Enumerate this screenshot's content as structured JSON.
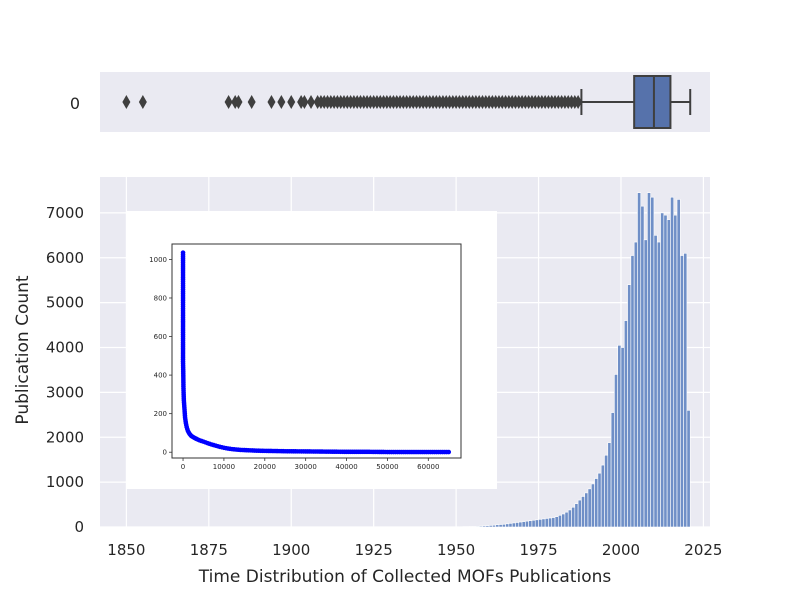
{
  "chart_data": [
    {
      "type": "box",
      "ytick_label": "0",
      "box": {
        "whisker_low": 1988,
        "q1": 2004,
        "median": 2010,
        "q3": 2015,
        "whisker_high": 2021
      },
      "outliers": [
        1850,
        1855,
        1881,
        1883,
        1884,
        1888,
        1894,
        1897,
        1900,
        1903,
        1904,
        1906,
        1908,
        1909,
        1910,
        1911,
        1912,
        1913,
        1914,
        1915,
        1916,
        1917,
        1918,
        1919,
        1920,
        1921,
        1922,
        1923,
        1924,
        1925,
        1926,
        1927,
        1928,
        1929,
        1930,
        1931,
        1932,
        1933,
        1934,
        1935,
        1936,
        1937,
        1938,
        1939,
        1940,
        1941,
        1942,
        1943,
        1944,
        1945,
        1946,
        1947,
        1948,
        1949,
        1950,
        1951,
        1952,
        1953,
        1954,
        1955,
        1956,
        1957,
        1958,
        1959,
        1960,
        1961,
        1962,
        1963,
        1964,
        1965,
        1966,
        1967,
        1968,
        1969,
        1970,
        1971,
        1972,
        1973,
        1974,
        1975,
        1976,
        1977,
        1978,
        1979,
        1980,
        1981,
        1982,
        1983,
        1984,
        1985,
        1986,
        1987
      ],
      "xlim": [
        1842,
        2027
      ],
      "colors": {
        "box": "#5672ab",
        "bg": "#eaeaf2",
        "line": "#3f3f3f"
      }
    },
    {
      "type": "bar",
      "xlabel": "Time Distribution of Collected MOFs Publications",
      "ylabel": "Publication Count",
      "xlim": [
        1842,
        2027
      ],
      "ylim": [
        0,
        7800
      ],
      "xticks": [
        1850,
        1875,
        1900,
        1925,
        1950,
        1975,
        2000,
        2025
      ],
      "yticks": [
        0,
        1000,
        2000,
        3000,
        4000,
        5000,
        6000,
        7000
      ],
      "bin_width": 1.0,
      "bins": [
        {
          "x": 1950,
          "value": 5
        },
        {
          "x": 1951,
          "value": 5
        },
        {
          "x": 1952,
          "value": 8
        },
        {
          "x": 1953,
          "value": 8
        },
        {
          "x": 1954,
          "value": 10
        },
        {
          "x": 1955,
          "value": 12
        },
        {
          "x": 1956,
          "value": 15
        },
        {
          "x": 1957,
          "value": 20
        },
        {
          "x": 1958,
          "value": 25
        },
        {
          "x": 1959,
          "value": 30
        },
        {
          "x": 1960,
          "value": 35
        },
        {
          "x": 1961,
          "value": 40
        },
        {
          "x": 1962,
          "value": 50
        },
        {
          "x": 1963,
          "value": 55
        },
        {
          "x": 1964,
          "value": 60
        },
        {
          "x": 1965,
          "value": 70
        },
        {
          "x": 1966,
          "value": 80
        },
        {
          "x": 1967,
          "value": 90
        },
        {
          "x": 1968,
          "value": 100
        },
        {
          "x": 1969,
          "value": 110
        },
        {
          "x": 1970,
          "value": 120
        },
        {
          "x": 1971,
          "value": 130
        },
        {
          "x": 1972,
          "value": 140
        },
        {
          "x": 1973,
          "value": 150
        },
        {
          "x": 1974,
          "value": 160
        },
        {
          "x": 1975,
          "value": 170
        },
        {
          "x": 1976,
          "value": 180
        },
        {
          "x": 1977,
          "value": 190
        },
        {
          "x": 1978,
          "value": 200
        },
        {
          "x": 1979,
          "value": 210
        },
        {
          "x": 1980,
          "value": 230
        },
        {
          "x": 1981,
          "value": 260
        },
        {
          "x": 1982,
          "value": 290
        },
        {
          "x": 1983,
          "value": 330
        },
        {
          "x": 1984,
          "value": 380
        },
        {
          "x": 1985,
          "value": 440
        },
        {
          "x": 1986,
          "value": 520
        },
        {
          "x": 1987,
          "value": 600
        },
        {
          "x": 1988,
          "value": 680
        },
        {
          "x": 1989,
          "value": 760
        },
        {
          "x": 1990,
          "value": 850
        },
        {
          "x": 1991,
          "value": 960
        },
        {
          "x": 1992,
          "value": 1080
        },
        {
          "x": 1993,
          "value": 1200
        },
        {
          "x": 1994,
          "value": 1380
        },
        {
          "x": 1995,
          "value": 1600
        },
        {
          "x": 1996,
          "value": 1880
        },
        {
          "x": 1997,
          "value": 2550
        },
        {
          "x": 1998,
          "value": 3400
        },
        {
          "x": 1999,
          "value": 4050
        },
        {
          "x": 2000,
          "value": 4000
        },
        {
          "x": 2001,
          "value": 4600
        },
        {
          "x": 2002,
          "value": 5400
        },
        {
          "x": 2003,
          "value": 6050
        },
        {
          "x": 2004,
          "value": 6350
        },
        {
          "x": 2005,
          "value": 7450
        },
        {
          "x": 2006,
          "value": 7150
        },
        {
          "x": 2007,
          "value": 6400
        },
        {
          "x": 2008,
          "value": 7450
        },
        {
          "x": 2009,
          "value": 7350
        },
        {
          "x": 2010,
          "value": 6500
        },
        {
          "x": 2011,
          "value": 6350
        },
        {
          "x": 2012,
          "value": 7000
        },
        {
          "x": 2013,
          "value": 6950
        },
        {
          "x": 2014,
          "value": 6850
        },
        {
          "x": 2015,
          "value": 7350
        },
        {
          "x": 2016,
          "value": 6950
        },
        {
          "x": 2017,
          "value": 7300
        },
        {
          "x": 2018,
          "value": 6050
        },
        {
          "x": 2019,
          "value": 6100
        },
        {
          "x": 2020,
          "value": 2600
        }
      ],
      "colors": {
        "bar": "#6f8fc7",
        "bar_edge": "#ffffff",
        "bg": "#eaeaf2",
        "grid": "#ffffff"
      }
    },
    {
      "type": "line",
      "series_marker": "circle",
      "xlim": [
        -2700,
        68000
      ],
      "ylim": [
        -30,
        1080
      ],
      "xticks": [
        0,
        10000,
        20000,
        30000,
        40000,
        50000,
        60000
      ],
      "yticks": [
        0,
        200,
        400,
        600,
        800,
        1000
      ],
      "points": [
        [
          0,
          1035
        ],
        [
          0,
          930
        ],
        [
          0,
          800
        ],
        [
          0,
          700
        ],
        [
          0,
          680
        ],
        [
          0,
          600
        ],
        [
          0,
          580
        ],
        [
          0,
          550
        ],
        [
          0,
          520
        ],
        [
          0,
          500
        ],
        [
          0,
          470
        ],
        [
          50,
          420
        ],
        [
          80,
          380
        ],
        [
          100,
          340
        ],
        [
          150,
          300
        ],
        [
          200,
          270
        ],
        [
          300,
          240
        ],
        [
          400,
          210
        ],
        [
          500,
          180
        ],
        [
          700,
          150
        ],
        [
          900,
          130
        ],
        [
          1200,
          110
        ],
        [
          1600,
          95
        ],
        [
          2000,
          85
        ],
        [
          2500,
          78
        ],
        [
          3000,
          72
        ],
        [
          4000,
          62
        ],
        [
          5000,
          55
        ],
        [
          6000,
          47
        ],
        [
          7000,
          40
        ],
        [
          8000,
          34
        ],
        [
          9000,
          28
        ],
        [
          10000,
          23
        ],
        [
          11000,
          19
        ],
        [
          12000,
          16
        ],
        [
          13000,
          14
        ],
        [
          14000,
          12
        ],
        [
          16000,
          10
        ],
        [
          18000,
          8
        ],
        [
          20000,
          7
        ],
        [
          25000,
          5
        ],
        [
          30000,
          4
        ],
        [
          35000,
          3
        ],
        [
          40000,
          2
        ],
        [
          45000,
          2
        ],
        [
          50000,
          1
        ],
        [
          55000,
          1
        ],
        [
          60000,
          1
        ],
        [
          65000,
          1
        ]
      ],
      "colors": {
        "line": "#0000ff",
        "marker": "#0000ff",
        "frame": "#333333"
      }
    }
  ]
}
